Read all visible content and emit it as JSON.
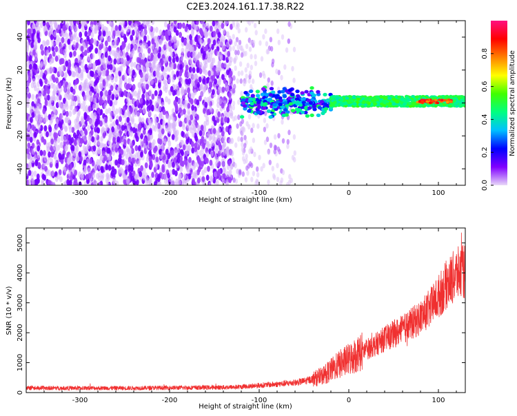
{
  "title": "C2E3.2024.161.17.38.R22",
  "chart_data": [
    {
      "type": "heatmap",
      "title": "C2E3.2024.161.17.38.R22",
      "xlabel": "Height of straight line (km)",
      "ylabel": "Frequency (Hz)",
      "xlim": [
        -360,
        130
      ],
      "ylim": [
        -50,
        50
      ],
      "x_ticks": [
        -300,
        -200,
        -100,
        0,
        100
      ],
      "y_ticks": [
        -40,
        -20,
        0,
        20,
        40
      ],
      "colorbar": {
        "label": "Normalized spectral amplitude",
        "range": [
          0.0,
          1.0
        ],
        "ticks": [
          0.0,
          0.2,
          0.4,
          0.6,
          0.8
        ],
        "colormap": [
          "#e8d8f8",
          "#8000ff",
          "#0000ff",
          "#00c0ff",
          "#00ff80",
          "#40ff00",
          "#ffff00",
          "#ff8000",
          "#ff0000",
          "#ff1080"
        ]
      },
      "regions": [
        {
          "x_range": [
            -360,
            -130
          ],
          "freq_range": [
            -50,
            50
          ],
          "amplitude": 0.1
        },
        {
          "x_range": [
            -130,
            -60
          ],
          "freq_range": [
            -50,
            50
          ],
          "amplitude": 0.05
        },
        {
          "x_range": [
            -120,
            -20
          ],
          "freq_range": [
            -10,
            10
          ],
          "amplitude": 0.4
        },
        {
          "x_range": [
            -20,
            130
          ],
          "freq_range": [
            -2,
            4
          ],
          "amplitude": 0.55
        },
        {
          "x_range": [
            75,
            115
          ],
          "freq_range": [
            0,
            2
          ],
          "amplitude": 0.85
        }
      ]
    },
    {
      "type": "line",
      "xlabel": "Height of straight line (km)",
      "ylabel": "SNR (10 * v/v)",
      "xlim": [
        -360,
        130
      ],
      "ylim": [
        0,
        5500
      ],
      "x_ticks": [
        -300,
        -200,
        -100,
        0,
        100
      ],
      "y_ticks": [
        0,
        1000,
        2000,
        3000,
        4000,
        5000
      ],
      "color": "#f03030",
      "series": [
        {
          "x": [
            -360,
            -300,
            -250,
            -200,
            -150,
            -120,
            -100,
            -80,
            -60,
            -50,
            -40,
            -30,
            -20,
            -10,
            0,
            10,
            20,
            30,
            40,
            50,
            60,
            70,
            80,
            90,
            100,
            110,
            120,
            130
          ],
          "y": [
            150,
            150,
            150,
            160,
            170,
            190,
            240,
            280,
            330,
            380,
            450,
            550,
            750,
            950,
            1100,
            1300,
            1450,
            1600,
            1800,
            1950,
            2100,
            2300,
            2500,
            2800,
            3200,
            3650,
            3950,
            4050
          ]
        }
      ]
    }
  ]
}
